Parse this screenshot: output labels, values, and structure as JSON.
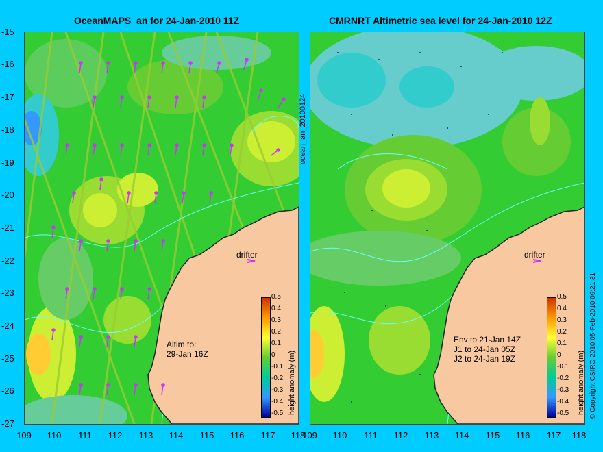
{
  "left_title": "OceanMAPS_an for 24-Jan-2010 11Z",
  "right_title": "CMRNRT Altimetric sea level  for 24-Jan-2010 12Z",
  "y_ticks": [
    "-15",
    "-16",
    "-17",
    "-18",
    "-19",
    "-20",
    "-21",
    "-22",
    "-23",
    "-24",
    "-25",
    "-26",
    "-27"
  ],
  "x_ticks_left": [
    "109",
    "110",
    "111",
    "112",
    "113",
    "114",
    "115",
    "116",
    "117",
    "118"
  ],
  "x_ticks_right": [
    "109",
    "110",
    "111",
    "112",
    "113",
    "114",
    "115",
    "116",
    "117",
    "118"
  ],
  "left_side_label": "ocean_an_20100124",
  "copyright": "© Copyright CSIRO 2010  05-Feb-2010 09:21:31",
  "colorbar": {
    "title": "height anomaly (m)",
    "ticks": [
      "0.5",
      "0.4",
      "0.3",
      "0.2",
      "0.1",
      "0",
      "-0.1",
      "-0.2",
      "-0.3",
      "-0.4",
      "-0.5"
    ],
    "colors": [
      "#cc3300",
      "#ff6600",
      "#ff9900",
      "#ffcc00",
      "#ffff33",
      "#99ff33",
      "#33cc00",
      "#00cc99",
      "#33ccff",
      "#3399ff",
      "#0033cc"
    ]
  },
  "left_annot": {
    "drifter": "drifter",
    "altim": "Altim to:\n29-Jan 16Z"
  },
  "right_annot": {
    "drifter": "drifter",
    "env": "Env to 21-Jan 14Z\nJ1 to 24-Jan 05Z\nJ2 to 24-Jan 19Z"
  },
  "colors": {
    "background": "#00ccff",
    "land": "#f8c8a0",
    "ocean_base": "#33cc33",
    "arrow": "#cc33ff",
    "contour": "#66ffff"
  }
}
